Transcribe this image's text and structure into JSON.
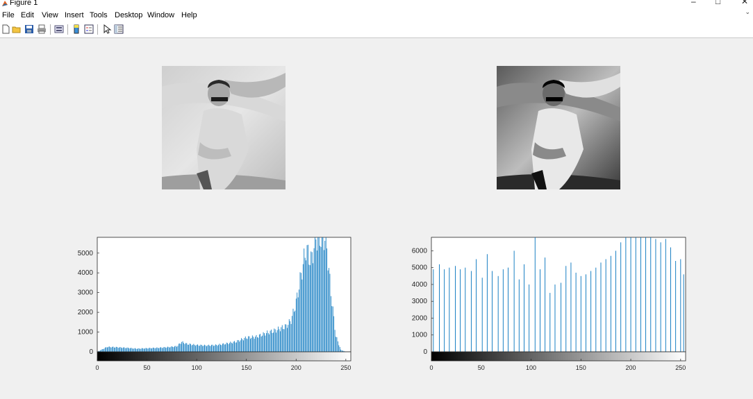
{
  "window": {
    "title": "Figure 1",
    "controls": [
      "–",
      "□",
      "✕"
    ]
  },
  "menubar": {
    "items": [
      "File",
      "Edit",
      "View",
      "Insert",
      "Tools",
      "Desktop",
      "Window",
      "Help"
    ]
  },
  "toolbar": {
    "icons": [
      "new-figure-icon",
      "open-file-icon",
      "save-icon",
      "print-icon",
      "link-plot-icon",
      "insert-colorbar-icon",
      "insert-legend-icon",
      "edit-plot-icon",
      "property-inspector-icon"
    ]
  },
  "images": [
    {
      "name": "original-grayscale-image",
      "description_only": ""
    },
    {
      "name": "equalized-grayscale-image",
      "description_only": ""
    }
  ],
  "chart_data": [
    {
      "type": "bar",
      "title": "",
      "xlabel": "",
      "ylabel": "",
      "xlim": [
        0,
        255
      ],
      "ylim": [
        0,
        5800
      ],
      "x_ticks": [
        "0",
        "50",
        "100",
        "150",
        "200",
        "250"
      ],
      "y_ticks": [
        "0",
        "1000",
        "2000",
        "3000",
        "4000",
        "5000"
      ],
      "colorbar": "grayscale 0-255",
      "color": "#0072bd",
      "series": [
        {
          "x": [
            0,
            10,
            20,
            30,
            40,
            50,
            60,
            70,
            80,
            85,
            90,
            100,
            110,
            120,
            130,
            140,
            150,
            160,
            170,
            180,
            190,
            195,
            200,
            205,
            210,
            215,
            220,
            225,
            230,
            235,
            240,
            245,
            250,
            255
          ],
          "values": [
            0,
            250,
            230,
            200,
            160,
            180,
            200,
            230,
            280,
            500,
            400,
            340,
            320,
            340,
            420,
            520,
            720,
            760,
            950,
            1100,
            1300,
            1600,
            2500,
            3900,
            5200,
            4600,
            5800,
            5800,
            5800,
            3000,
            800,
            100,
            0,
            0
          ]
        }
      ]
    },
    {
      "type": "bar",
      "title": "",
      "xlabel": "",
      "ylabel": "",
      "xlim": [
        0,
        255
      ],
      "ylim": [
        0,
        6800
      ],
      "x_ticks": [
        "0",
        "50",
        "100",
        "150",
        "200",
        "250"
      ],
      "y_ticks": [
        "0",
        "1000",
        "2000",
        "3000",
        "4000",
        "5000",
        "6000"
      ],
      "colorbar": "grayscale 0-255",
      "color": "#0072bd",
      "series": [
        {
          "x": [
            2,
            8,
            13,
            18,
            24,
            29,
            34,
            40,
            45,
            51,
            56,
            61,
            67,
            72,
            77,
            83,
            88,
            93,
            98,
            104,
            109,
            114,
            119,
            124,
            130,
            135,
            140,
            145,
            150,
            155,
            160,
            165,
            170,
            175,
            180,
            185,
            190,
            195,
            200,
            205,
            210,
            215,
            220,
            225,
            230,
            235,
            240,
            245,
            250,
            253
          ],
          "values": [
            4900,
            5200,
            4900,
            5000,
            5100,
            4900,
            5000,
            4800,
            5500,
            4400,
            5800,
            4800,
            4500,
            4900,
            5000,
            6000,
            4300,
            5200,
            4000,
            6800,
            4900,
            5600,
            3500,
            4000,
            4100,
            5100,
            5300,
            4700,
            4500,
            4600,
            4800,
            5000,
            5300,
            5500,
            5700,
            6000,
            6500,
            6800,
            6800,
            6800,
            6800,
            6800,
            6800,
            6700,
            6500,
            6700,
            6200,
            5400,
            5500,
            4600
          ]
        }
      ]
    }
  ]
}
